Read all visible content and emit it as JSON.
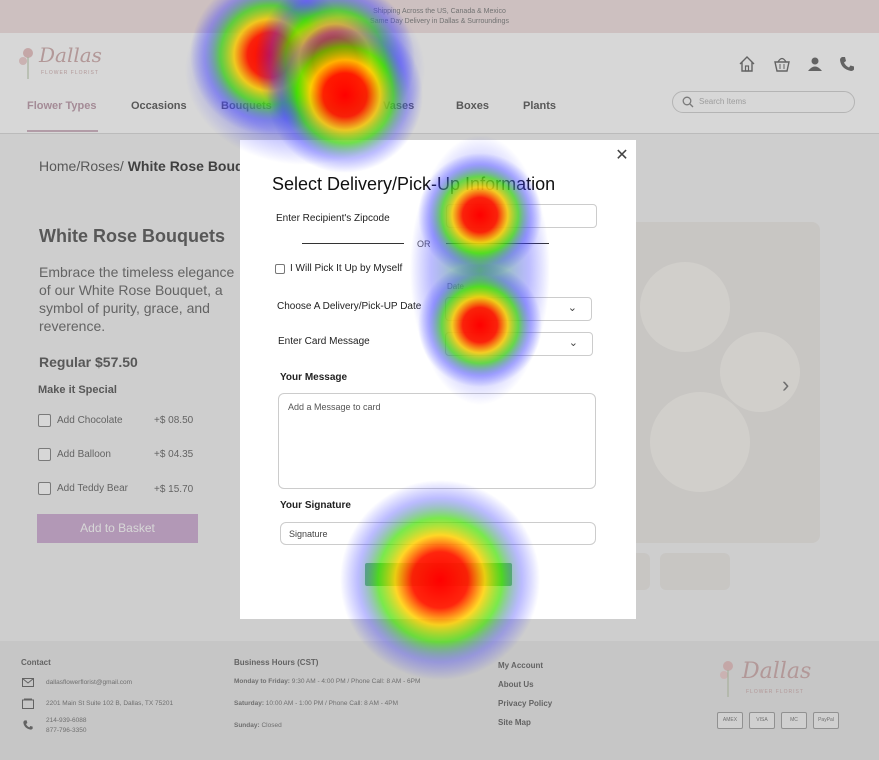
{
  "banner": {
    "line1": "Shipping Across the US, Canada & Mexico",
    "line2": "Same Day Delivery in Dallas & Surroundings"
  },
  "logo": {
    "script": "Dallas",
    "sub": "FLOWER FLORIST"
  },
  "nav": {
    "items": [
      "Flower Types",
      "Occasions",
      "Bouquets",
      "Vases",
      "Boxes",
      "Plants"
    ],
    "active": "Flower Types"
  },
  "search": {
    "placeholder": "Search Items"
  },
  "header_icons": [
    "home-icon",
    "basket-icon",
    "user-icon",
    "phone-icon"
  ],
  "page": {
    "breadcrumb_prefix": "Home/Roses/",
    "breadcrumb_current": "White Rose Bouquets",
    "title": "White Rose Bouquets",
    "description": "Embrace the timeless elegance of our White Rose Bouquet, a symbol of purity, grace, and reverence.",
    "price": "Regular $57.50",
    "special_title": "Make it Special",
    "addons": [
      {
        "label": "Add Chocolate",
        "price": "+$ 08.50"
      },
      {
        "label": "Add Balloon",
        "price": "+$ 04.35"
      },
      {
        "label": "Add Teddy Bear",
        "price": "+$ 15.70"
      }
    ],
    "basket_button": "Add to Basket"
  },
  "modal": {
    "title": "Select Delivery/Pick-Up Information",
    "zip_label": "Enter Recipient's Zipcode",
    "or_text": "OR",
    "pickup_label": "I Will Pick It Up by Myself",
    "date_top_label": "Date",
    "date_label": "Choose A Delivery/Pick-UP Date",
    "card_label": "Enter Card Message",
    "message_title": "Your Message",
    "message_placeholder": "Add a Message to card",
    "signature_title": "Your Signature",
    "signature_placeholder": "Signature"
  },
  "footer": {
    "contact_title": "Contact",
    "email": "dallasflowerflorist@gmail.com",
    "address": "2201 Main St Suite 102 B, Dallas, TX 75201",
    "phone1": "214-939-6088",
    "phone2": "877-796-3350",
    "hours_title": "Business Hours (CST)",
    "hours": [
      {
        "day": "Monday to Friday:",
        "text": "9:30 AM - 4:00 PM / Phone Call: 8 AM - 6PM"
      },
      {
        "day": "Saturday:",
        "text": "10:00 AM - 1:00 PM / Phone Call: 8 AM - 4PM"
      },
      {
        "day": "Sunday:",
        "text": "Closed"
      }
    ],
    "links": [
      "My Account",
      "About Us",
      "Privacy Policy",
      "Site Map"
    ],
    "payments": [
      "AMEX",
      "VISA",
      "MC",
      "PayPal"
    ]
  },
  "colors": {
    "banner": "#f0dede",
    "accent_pink": "#c9a3cf",
    "submit_green": "#6fbf73"
  }
}
